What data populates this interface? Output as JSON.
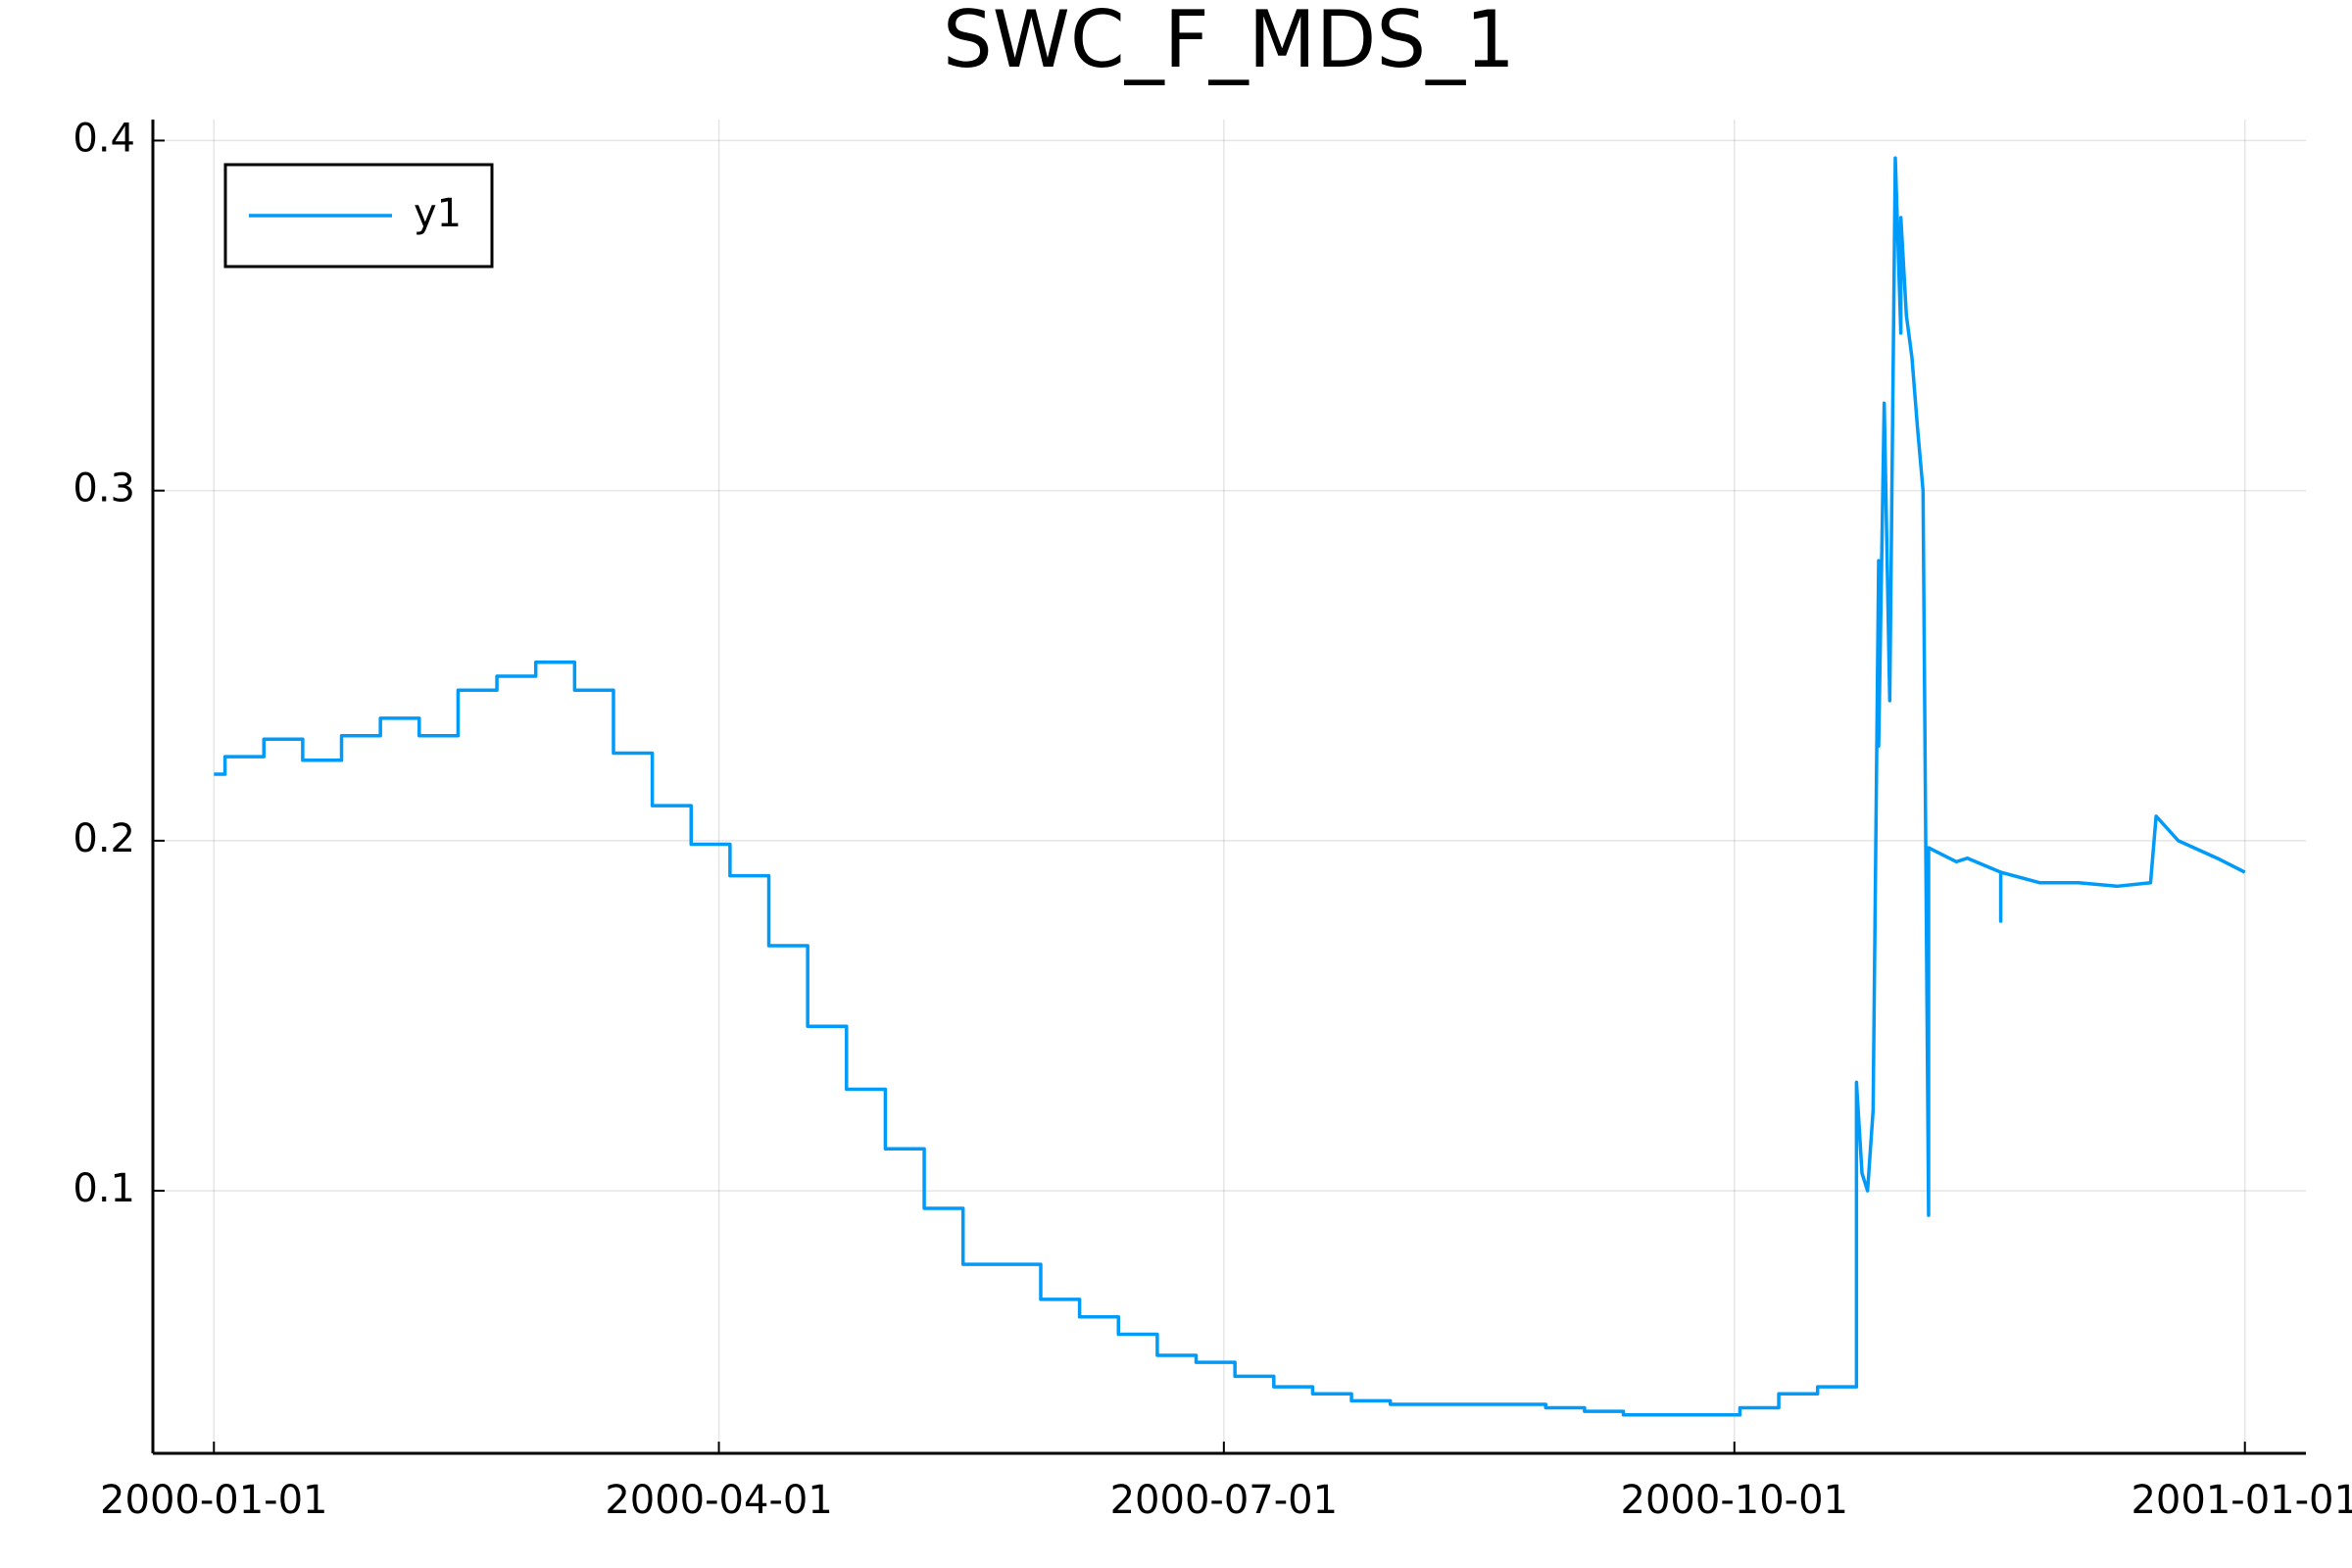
{
  "chart_data": {
    "type": "line",
    "title": "SWC_F_MDS_1",
    "x": [
      "2000-01-01",
      "2000-01-03",
      "2000-01-03",
      "2000-01-10",
      "2000-01-10",
      "2000-01-17",
      "2000-01-17",
      "2000-01-24",
      "2000-01-24",
      "2000-01-31",
      "2000-01-31",
      "2000-02-07",
      "2000-02-07",
      "2000-02-14",
      "2000-02-14",
      "2000-02-21",
      "2000-02-21",
      "2000-02-28",
      "2000-02-28",
      "2000-03-06",
      "2000-03-06",
      "2000-03-13",
      "2000-03-13",
      "2000-03-20",
      "2000-03-20",
      "2000-03-27",
      "2000-03-27",
      "2000-04-03",
      "2000-04-03",
      "2000-04-10",
      "2000-04-10",
      "2000-04-17",
      "2000-04-17",
      "2000-04-24",
      "2000-04-24",
      "2000-05-01",
      "2000-05-01",
      "2000-05-08",
      "2000-05-08",
      "2000-05-15",
      "2000-05-15",
      "2000-05-29",
      "2000-05-29",
      "2000-06-05",
      "2000-06-05",
      "2000-06-12",
      "2000-06-12",
      "2000-06-19",
      "2000-06-19",
      "2000-06-26",
      "2000-06-26",
      "2000-07-03",
      "2000-07-03",
      "2000-07-10",
      "2000-07-10",
      "2000-07-17",
      "2000-07-17",
      "2000-07-24",
      "2000-07-24",
      "2000-07-31",
      "2000-07-31",
      "2000-08-28",
      "2000-08-28",
      "2000-09-04",
      "2000-09-04",
      "2000-09-11",
      "2000-09-11",
      "2000-10-02",
      "2000-10-02",
      "2000-10-09",
      "2000-10-09",
      "2000-10-16",
      "2000-10-16",
      "2000-10-23",
      "2000-10-23",
      "2000-10-24",
      "2000-10-25",
      "2000-10-26",
      "2000-10-27",
      "2000-10-27",
      "2000-10-28",
      "2000-10-29",
      "2000-10-30",
      "2000-10-31",
      "2000-10-31",
      "2000-11-01",
      "2000-11-02",
      "2000-11-03",
      "2000-11-04",
      "2000-11-05",
      "2000-11-05",
      "2000-11-10",
      "2000-11-12",
      "2000-11-18",
      "2000-11-18",
      "2000-11-18",
      "2000-11-25",
      "2000-12-02",
      "2000-12-09",
      "2000-12-15",
      "2000-12-16",
      "2000-12-20",
      "2000-12-27",
      "2001-01-01"
    ],
    "series": [
      {
        "name": "y1",
        "color": "#009af9",
        "values": [
          0.219,
          0.219,
          0.224,
          0.224,
          0.229,
          0.229,
          0.223,
          0.223,
          0.23,
          0.23,
          0.235,
          0.235,
          0.23,
          0.23,
          0.243,
          0.243,
          0.247,
          0.247,
          0.251,
          0.251,
          0.243,
          0.243,
          0.225,
          0.225,
          0.21,
          0.21,
          0.199,
          0.199,
          0.19,
          0.19,
          0.17,
          0.17,
          0.147,
          0.147,
          0.129,
          0.129,
          0.112,
          0.112,
          0.095,
          0.095,
          0.079,
          0.079,
          0.069,
          0.069,
          0.064,
          0.064,
          0.059,
          0.059,
          0.053,
          0.053,
          0.051,
          0.051,
          0.047,
          0.047,
          0.044,
          0.044,
          0.042,
          0.042,
          0.04,
          0.04,
          0.039,
          0.039,
          0.038,
          0.038,
          0.037,
          0.037,
          0.036,
          0.036,
          0.038,
          0.038,
          0.042,
          0.042,
          0.044,
          0.044,
          0.131,
          0.105,
          0.1,
          0.123,
          0.28,
          0.227,
          0.325,
          0.24,
          0.395,
          0.345,
          0.378,
          0.35,
          0.338,
          0.318,
          0.3,
          0.093,
          0.198,
          0.194,
          0.195,
          0.191,
          0.177,
          0.191,
          0.188,
          0.188,
          0.187,
          0.188,
          0.207,
          0.2,
          0.195,
          0.191
        ]
      }
    ],
    "xlim": [
      "1999-12-21",
      "2001-01-12"
    ],
    "xticks": [
      "2000-01-01",
      "2000-04-01",
      "2000-07-01",
      "2000-10-01",
      "2001-01-01"
    ],
    "ylim": [
      0.025,
      0.406
    ],
    "yticks": [
      0.1,
      0.2,
      0.3,
      0.4
    ],
    "grid": true,
    "legend": "top-left"
  }
}
